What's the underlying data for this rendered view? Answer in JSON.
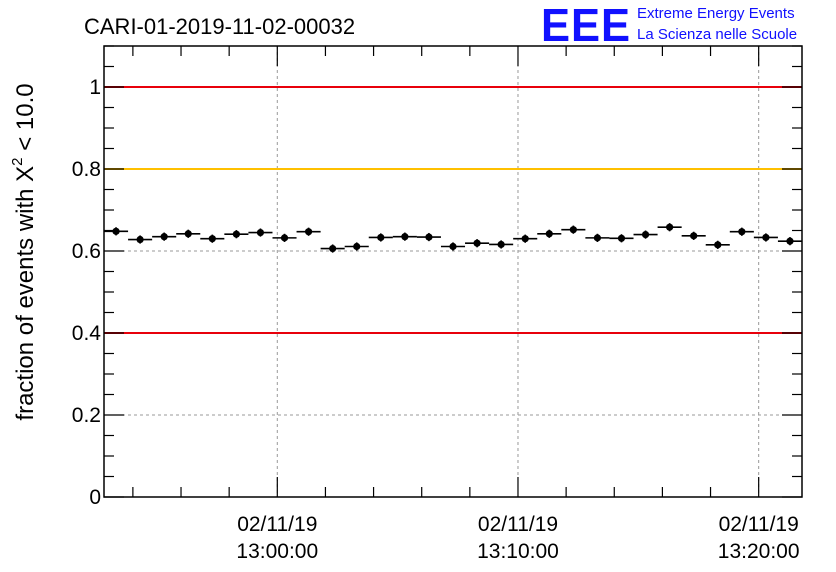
{
  "chart_data": {
    "type": "scatter",
    "title": "CARI-01-2019-11-02-00032",
    "ylabel_prefix": "fraction of events with ",
    "ylabel_symbol": "X",
    "ylabel_exp": "2",
    "ylabel_suffix": " < 10.0",
    "xlabel": "",
    "logo": {
      "mark": "EEE",
      "line1": "Extreme Energy Events",
      "line2": "La Scienza nelle Scuole"
    },
    "xlim_minutes": [
      -7.2,
      21.8
    ],
    "ylim": [
      0,
      1.1
    ],
    "y_ticks": [
      0,
      0.2,
      0.4,
      0.6,
      0.8,
      1
    ],
    "y_tick_labels": [
      "0",
      "0.2",
      "0.4",
      "0.6",
      "0.8",
      "1"
    ],
    "x_ticks_minutes": [
      0,
      10,
      20
    ],
    "x_tick_dates": [
      "02/11/19",
      "02/11/19",
      "02/11/19"
    ],
    "x_tick_times": [
      "13:00:00",
      "13:10:00",
      "13:20:00"
    ],
    "reference_lines": [
      {
        "y": 1.0,
        "color": "#e8000b"
      },
      {
        "y": 0.8,
        "color": "#ffc000"
      },
      {
        "y": 0.4,
        "color": "#e8000b"
      }
    ],
    "grid": true,
    "bin_width_minutes": 1,
    "x_minutes": [
      -6.7,
      -5.7,
      -4.7,
      -3.7,
      -2.7,
      -1.7,
      -0.7,
      0.3,
      1.3,
      2.3,
      3.3,
      4.3,
      5.3,
      6.3,
      7.3,
      8.3,
      9.3,
      10.3,
      11.3,
      12.3,
      13.3,
      14.3,
      15.3,
      16.3,
      17.3,
      18.3,
      19.3,
      20.3,
      21.3
    ],
    "values": [
      0.648,
      0.628,
      0.635,
      0.642,
      0.63,
      0.641,
      0.645,
      0.632,
      0.647,
      0.606,
      0.611,
      0.633,
      0.635,
      0.634,
      0.611,
      0.619,
      0.616,
      0.63,
      0.642,
      0.652,
      0.632,
      0.631,
      0.64,
      0.658,
      0.637,
      0.615,
      0.647,
      0.633,
      0.624
    ],
    "errors": [
      0.01,
      0.01,
      0.01,
      0.01,
      0.01,
      0.01,
      0.01,
      0.01,
      0.01,
      0.01,
      0.01,
      0.01,
      0.01,
      0.01,
      0.01,
      0.01,
      0.01,
      0.01,
      0.01,
      0.01,
      0.01,
      0.01,
      0.01,
      0.01,
      0.01,
      0.01,
      0.01,
      0.01,
      0.01
    ],
    "colors": {
      "axis": "#000000",
      "grid": "#999999",
      "points": "#000000",
      "logo": "#1010ff"
    }
  }
}
